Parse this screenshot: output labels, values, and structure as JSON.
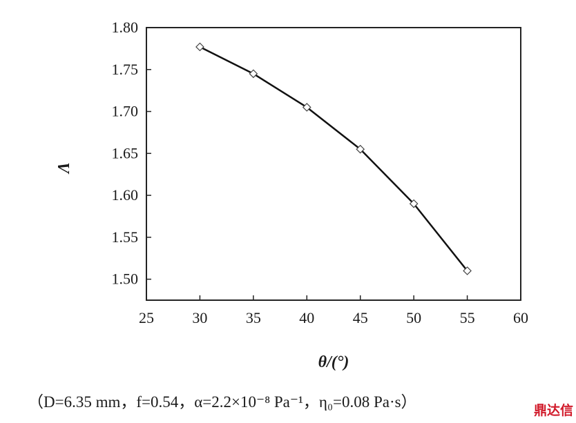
{
  "chart_data": {
    "type": "line",
    "x": [
      30,
      35,
      40,
      45,
      50,
      55
    ],
    "series": [
      {
        "values": [
          1.777,
          1.745,
          1.705,
          1.655,
          1.59,
          1.51
        ]
      }
    ],
    "xlabel": "θ/(°)",
    "ylabel": "Λ",
    "xlim": [
      25,
      60
    ],
    "ylim": [
      1.475,
      1.8
    ],
    "xticks": [
      "25",
      "30",
      "35",
      "40",
      "45",
      "50",
      "55",
      "60"
    ],
    "yticks": [
      "1.50",
      "1.55",
      "1.60",
      "1.65",
      "1.70",
      "1.75",
      "1.80"
    ],
    "marker": "diamond",
    "line_color": "#111111",
    "grid": false,
    "legend": "none"
  },
  "caption": "（D=6.35 mm，f=0.54，α=2.2×10⁻⁸ Pa⁻¹，η₀=0.08 Pa·s）",
  "watermark": "鼎达信"
}
